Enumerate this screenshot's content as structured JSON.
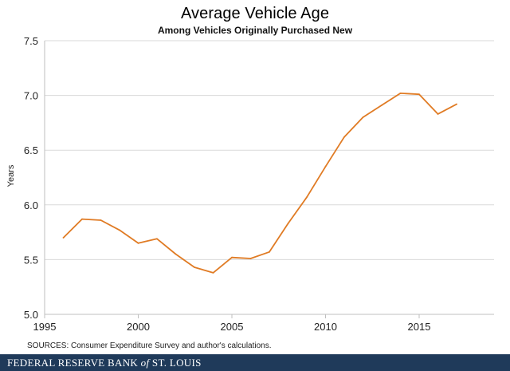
{
  "header": {
    "title": "Average Vehicle Age",
    "subtitle": "Among Vehicles Originally Purchased New"
  },
  "source_note": "SOURCES: Consumer Expenditure Survey and author's calculations.",
  "footer": {
    "brand": "Federal Reserve Bank of St. Louis",
    "brand_pre": "FEDERAL RESERVE BANK ",
    "brand_of": "of",
    "brand_post": " ST. LOUIS",
    "background_color": "#1f3a5a"
  },
  "chart_data": {
    "type": "line",
    "title": "Average Vehicle Age",
    "subtitle": "Among Vehicles Originally Purchased New",
    "xlabel": "",
    "ylabel": "Years",
    "xlim": [
      1995,
      2019
    ],
    "ylim": [
      5.0,
      7.5
    ],
    "x_ticks": [
      1995,
      2000,
      2005,
      2010,
      2015
    ],
    "y_ticks": [
      "5.0",
      "5.5",
      "6.0",
      "6.5",
      "7.0",
      "7.5"
    ],
    "grid": "horizontal",
    "line_color": "#e07b24",
    "grid_color": "#d9d9d9",
    "series": [
      {
        "x": [
          1996,
          1997,
          1998,
          1999,
          2000,
          2001,
          2002,
          2003,
          2004,
          2005,
          2006,
          2007,
          2008,
          2009,
          2010,
          2011,
          2012,
          2013,
          2014,
          2015,
          2016,
          2017
        ],
        "values": [
          5.7,
          5.87,
          5.86,
          5.77,
          5.65,
          5.69,
          5.55,
          5.43,
          5.38,
          5.52,
          5.51,
          5.57,
          5.83,
          6.07,
          6.35,
          6.62,
          6.8,
          6.91,
          7.02,
          7.01,
          6.83,
          6.92
        ]
      }
    ]
  }
}
